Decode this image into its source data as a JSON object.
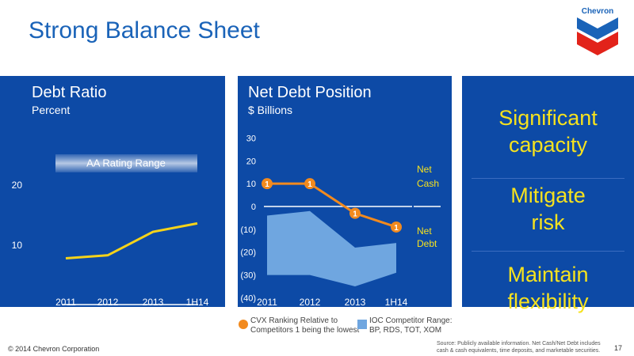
{
  "page_title": "Strong Balance Sheet",
  "logo": {
    "text": "Chevron",
    "colors": [
      "#1a63b8",
      "#e2231a"
    ]
  },
  "copyright": "© 2014 Chevron Corporation",
  "source_note": "Source: Publicly available information. Net Cash/Net Debt includes cash & cash equivalents, time deposits, and marketable securities.",
  "page_number": "17",
  "chart_data": [
    {
      "type": "line",
      "title": "Debt Ratio",
      "subtitle": "Percent",
      "categories": [
        "2011",
        "2012",
        "2013",
        "1H14"
      ],
      "yticks": [
        10,
        20
      ],
      "ylim": [
        3,
        28
      ],
      "band": {
        "label": "AA Rating Range",
        "from": 22,
        "to": 25
      },
      "series": [
        {
          "values": [
            7.7,
            8.2,
            12.1,
            13.5
          ],
          "color": "#f5d31a"
        }
      ],
      "floor_line": 0
    },
    {
      "type": "line",
      "title": "Net Debt Position",
      "subtitle": "$ Billions",
      "categories": [
        "2011",
        "2012",
        "2013",
        "1H14"
      ],
      "yticks": [
        -40,
        -30,
        -20,
        -10,
        0,
        10,
        20,
        30
      ],
      "ytick_labels": [
        "(40)",
        "(30)",
        "(20)",
        "(10)",
        "0",
        "10",
        "20",
        "30"
      ],
      "ylim": [
        -40,
        30
      ],
      "range_area": {
        "upper": [
          -4,
          -2,
          -18,
          -16
        ],
        "lower": [
          -30,
          -30,
          -35,
          -29
        ],
        "color": "#6fa6e0"
      },
      "series": [
        {
          "values": [
            10,
            10,
            -3,
            -9
          ],
          "rank_labels": [
            "1",
            "1",
            "1",
            "1"
          ],
          "color": "#f28a1e"
        }
      ],
      "annotations": {
        "net_cash": [
          "Net",
          "Cash"
        ],
        "net_debt": [
          "Net",
          "Debt"
        ]
      },
      "legend": {
        "ranking": [
          "CVX Ranking Relative to",
          "Competitors 1 being the lowest"
        ],
        "competitors": [
          "IOC Competitor Range:",
          "BP, RDS, TOT, XOM"
        ]
      }
    }
  ],
  "messages": [
    [
      "Significant",
      "capacity"
    ],
    [
      "Mitigate",
      "risk"
    ],
    [
      "Maintain",
      "flexibility"
    ]
  ]
}
